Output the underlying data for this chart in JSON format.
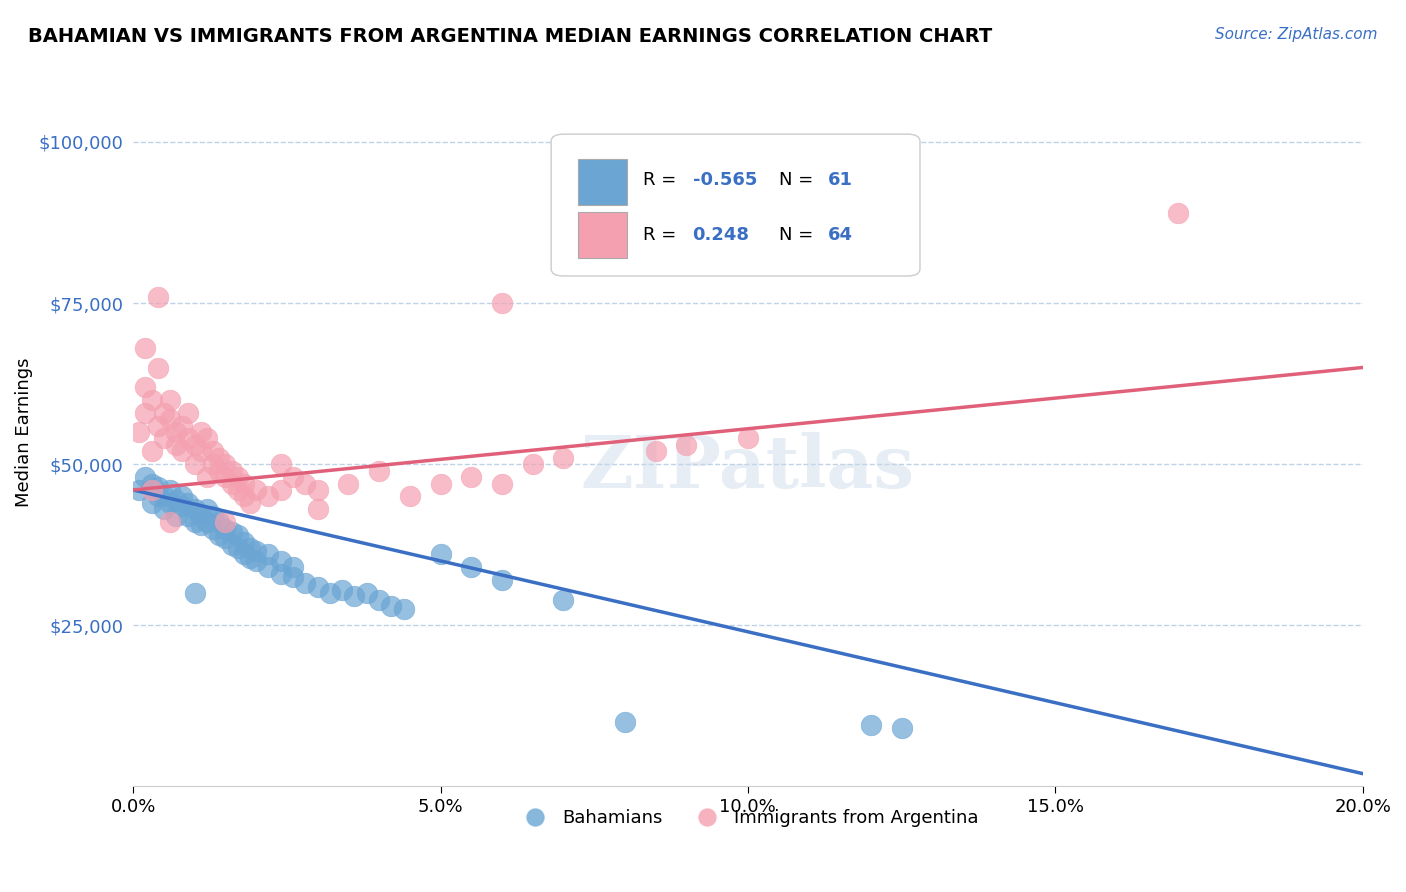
{
  "title": "BAHAMIAN VS IMMIGRANTS FROM ARGENTINA MEDIAN EARNINGS CORRELATION CHART",
  "source": "Source: ZipAtlas.com",
  "xlabel_ticks": [
    "0.0%",
    "5.0%",
    "10.0%",
    "15.0%",
    "20.0%"
  ],
  "xlabel_tick_vals": [
    0.0,
    0.05,
    0.1,
    0.15,
    0.2
  ],
  "ylabel": "Median Earnings",
  "ylabel_ticks": [
    "$25,000",
    "$50,000",
    "$75,000",
    "$100,000"
  ],
  "ylabel_tick_vals": [
    25000,
    50000,
    75000,
    100000
  ],
  "xlim": [
    0.0,
    0.2
  ],
  "ylim": [
    0,
    110000
  ],
  "legend_r_blue": "-0.565",
  "legend_n_blue": "61",
  "legend_r_pink": "0.248",
  "legend_n_pink": "64",
  "blue_color": "#6aa5d4",
  "pink_color": "#f4a0b0",
  "trend_blue": "#3a6fc4",
  "trend_pink": "#e0607a",
  "watermark": "ZIPatlas",
  "blue_scatter": [
    [
      0.001,
      46000
    ],
    [
      0.002,
      48000
    ],
    [
      0.003,
      44000
    ],
    [
      0.003,
      47000
    ],
    [
      0.004,
      45000
    ],
    [
      0.004,
      46500
    ],
    [
      0.005,
      43000
    ],
    [
      0.005,
      45000
    ],
    [
      0.006,
      44000
    ],
    [
      0.006,
      46000
    ],
    [
      0.007,
      42000
    ],
    [
      0.007,
      44500
    ],
    [
      0.008,
      43500
    ],
    [
      0.008,
      45000
    ],
    [
      0.009,
      42000
    ],
    [
      0.009,
      44000
    ],
    [
      0.01,
      41000
    ],
    [
      0.01,
      43000
    ],
    [
      0.011,
      42000
    ],
    [
      0.011,
      40500
    ],
    [
      0.012,
      41000
    ],
    [
      0.012,
      43000
    ],
    [
      0.013,
      40000
    ],
    [
      0.013,
      42000
    ],
    [
      0.014,
      39000
    ],
    [
      0.014,
      41000
    ],
    [
      0.015,
      38500
    ],
    [
      0.015,
      40000
    ],
    [
      0.016,
      37500
    ],
    [
      0.016,
      39500
    ],
    [
      0.017,
      37000
    ],
    [
      0.017,
      39000
    ],
    [
      0.018,
      36000
    ],
    [
      0.018,
      38000
    ],
    [
      0.019,
      35500
    ],
    [
      0.019,
      37000
    ],
    [
      0.02,
      35000
    ],
    [
      0.02,
      36500
    ],
    [
      0.022,
      34000
    ],
    [
      0.022,
      36000
    ],
    [
      0.024,
      33000
    ],
    [
      0.024,
      35000
    ],
    [
      0.026,
      32500
    ],
    [
      0.026,
      34000
    ],
    [
      0.028,
      31500
    ],
    [
      0.03,
      31000
    ],
    [
      0.032,
      30000
    ],
    [
      0.034,
      30500
    ],
    [
      0.036,
      29500
    ],
    [
      0.038,
      30000
    ],
    [
      0.04,
      29000
    ],
    [
      0.042,
      28000
    ],
    [
      0.044,
      27500
    ],
    [
      0.05,
      36000
    ],
    [
      0.055,
      34000
    ],
    [
      0.06,
      32000
    ],
    [
      0.07,
      29000
    ],
    [
      0.08,
      10000
    ],
    [
      0.12,
      9500
    ],
    [
      0.125,
      9000
    ],
    [
      0.01,
      30000
    ]
  ],
  "pink_scatter": [
    [
      0.001,
      55000
    ],
    [
      0.002,
      58000
    ],
    [
      0.002,
      62000
    ],
    [
      0.003,
      60000
    ],
    [
      0.003,
      52000
    ],
    [
      0.004,
      56000
    ],
    [
      0.004,
      65000
    ],
    [
      0.005,
      54000
    ],
    [
      0.005,
      58000
    ],
    [
      0.006,
      57000
    ],
    [
      0.006,
      60000
    ],
    [
      0.007,
      55000
    ],
    [
      0.007,
      53000
    ],
    [
      0.008,
      52000
    ],
    [
      0.008,
      56000
    ],
    [
      0.009,
      54000
    ],
    [
      0.009,
      58000
    ],
    [
      0.01,
      50000
    ],
    [
      0.01,
      53000
    ],
    [
      0.011,
      52000
    ],
    [
      0.011,
      55000
    ],
    [
      0.012,
      48000
    ],
    [
      0.012,
      54000
    ],
    [
      0.013,
      50000
    ],
    [
      0.013,
      52000
    ],
    [
      0.014,
      49000
    ],
    [
      0.014,
      51000
    ],
    [
      0.015,
      48000
    ],
    [
      0.015,
      50000
    ],
    [
      0.016,
      47000
    ],
    [
      0.016,
      49000
    ],
    [
      0.017,
      46000
    ],
    [
      0.017,
      48000
    ],
    [
      0.018,
      45000
    ],
    [
      0.018,
      47000
    ],
    [
      0.019,
      44000
    ],
    [
      0.02,
      46000
    ],
    [
      0.022,
      45000
    ],
    [
      0.024,
      50000
    ],
    [
      0.024,
      46000
    ],
    [
      0.026,
      48000
    ],
    [
      0.028,
      47000
    ],
    [
      0.03,
      46000
    ],
    [
      0.03,
      43000
    ],
    [
      0.035,
      47000
    ],
    [
      0.04,
      49000
    ],
    [
      0.045,
      45000
    ],
    [
      0.05,
      47000
    ],
    [
      0.055,
      48000
    ],
    [
      0.06,
      47000
    ],
    [
      0.065,
      50000
    ],
    [
      0.07,
      51000
    ],
    [
      0.08,
      84000
    ],
    [
      0.085,
      52000
    ],
    [
      0.09,
      53000
    ],
    [
      0.1,
      54000
    ],
    [
      0.004,
      76000
    ],
    [
      0.06,
      75000
    ],
    [
      0.11,
      91000
    ],
    [
      0.17,
      89000
    ],
    [
      0.002,
      68000
    ],
    [
      0.003,
      46000
    ],
    [
      0.006,
      41000
    ],
    [
      0.015,
      41000
    ]
  ]
}
